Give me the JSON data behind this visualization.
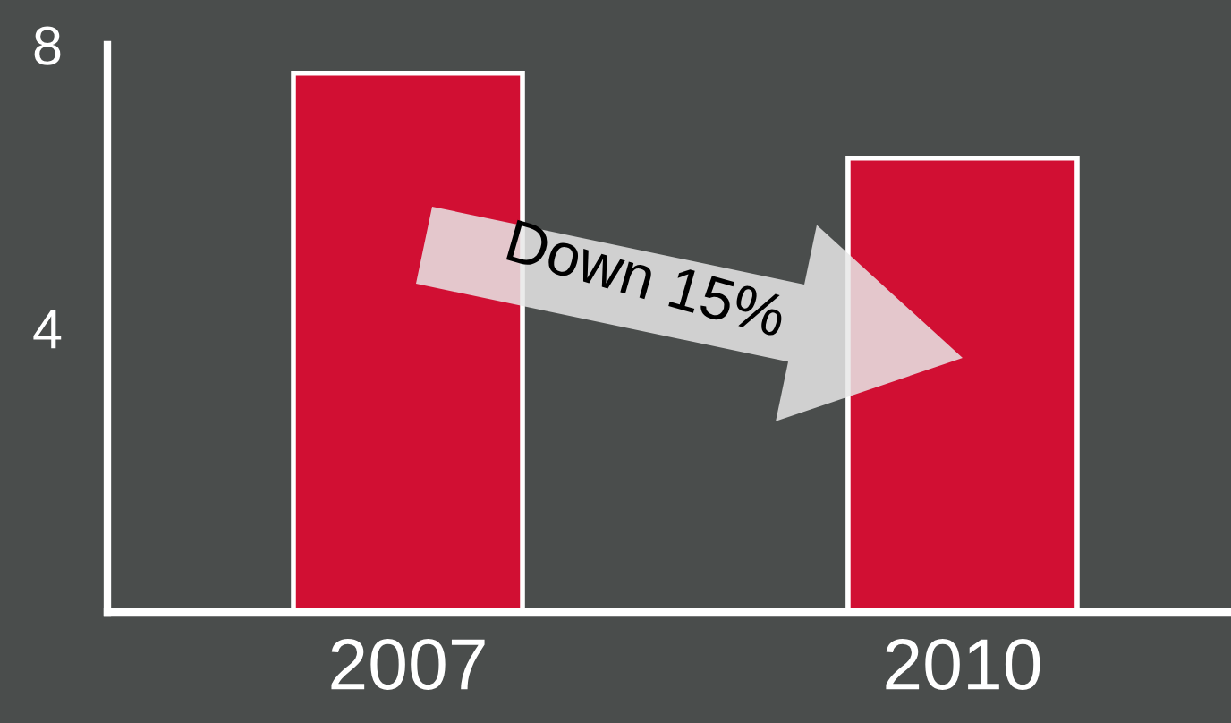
{
  "chart_data": {
    "type": "bar",
    "categories": [
      "2007",
      "2010"
    ],
    "values": [
      7.6,
      6.4
    ],
    "color": "#d10f33",
    "ylim": [
      0,
      8
    ],
    "yticks": [
      4,
      8
    ],
    "grid": false,
    "annotations": [
      "Down 15%"
    ]
  }
}
